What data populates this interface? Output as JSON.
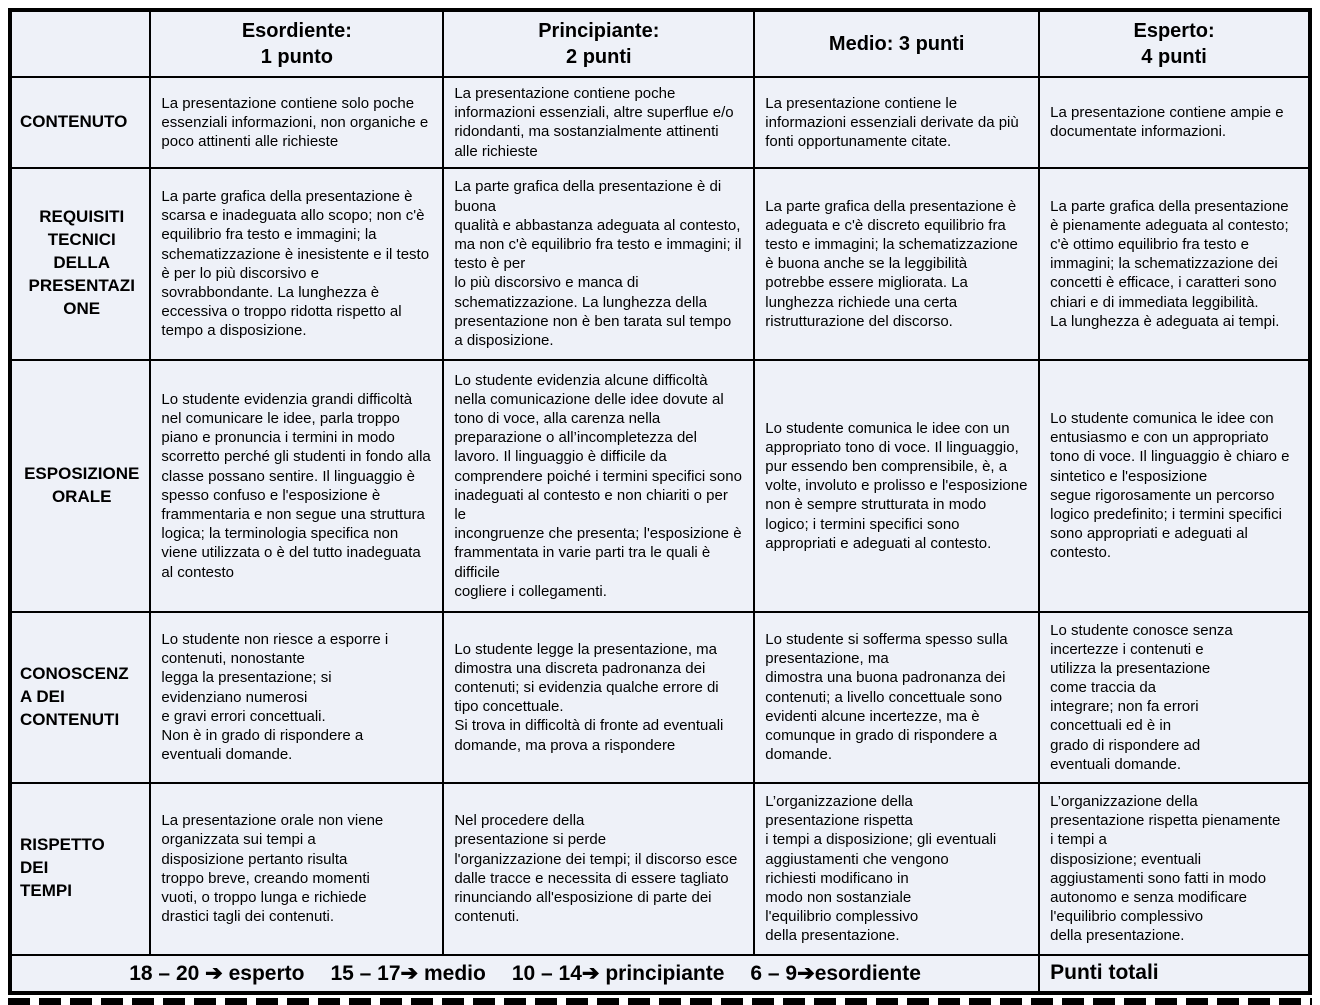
{
  "table": {
    "header": {
      "corner": "",
      "columns": [
        "Esordiente:\n1 punto",
        "Principiante:\n2 punti",
        "Medio: 3 punti",
        "Esperto:\n4 punti"
      ]
    },
    "rows": [
      {
        "label": "CONTENUTO",
        "cells": [
          "La presentazione contiene solo poche essenziali informazioni, non organiche e poco attinenti alle richieste",
          "La presentazione contiene poche informazioni essenziali, altre superflue e/o ridondanti, ma sostanzialmente attinenti alle richieste",
          "La presentazione contiene le informazioni essenziali derivate da più fonti opportunamente citate.",
          "La presentazione contiene ampie e documentate informazioni."
        ]
      },
      {
        "label": "REQUISITI\nTECNICI\nDELLA\nPRESENTAZI\nONE",
        "cells": [
          "La parte grafica della presentazione è scarsa e inadeguata allo scopo; non c'è equilibrio fra testo e immagini; la\nschematizzazione è inesistente e il testo è per lo più discorsivo e sovrabbondante. La lunghezza è eccessiva o troppo ridotta rispetto al tempo a disposizione.",
          "La parte grafica della presentazione è di buona\nqualità e abbastanza adeguata al contesto, ma non c'è equilibrio fra testo e immagini; il testo è per\nlo più discorsivo e manca di schematizzazione. La lunghezza della presentazione non è ben tarata sul tempo a disposizione.",
          "La parte grafica della presentazione è adeguata e c'è discreto equilibrio fra testo e immagini; la schematizzazione è buona anche se la leggibilità potrebbe essere migliorata. La lunghezza richiede una certa ristrutturazione del discorso.",
          "La parte grafica della presentazione è pienamente adeguata al contesto; c'è ottimo equilibrio fra testo e immagini; la schematizzazione dei concetti è efficace, i caratteri sono chiari e di immediata leggibilità.\nLa lunghezza è adeguata ai tempi."
        ]
      },
      {
        "label": "ESPOSIZIONE\nORALE",
        "cells": [
          "Lo studente evidenzia grandi difficoltà nel comunicare le idee, parla troppo piano e pronuncia i termini in modo scorretto perché gli studenti in fondo alla classe possano sentire. Il linguaggio è spesso confuso e l'esposizione è frammentaria e non segue una struttura logica; la terminologia specifica non viene utilizzata o è del tutto inadeguata al contesto",
          "Lo studente evidenzia alcune difficoltà nella comunicazione delle idee dovute al tono di voce, alla carenza nella preparazione o all’incompletezza del lavoro. Il linguaggio è difficile da comprendere poiché i termini specifici sono inadeguati al contesto e non chiariti o per le\nincongruenze che presenta; l'esposizione è frammentata in varie parti tra le quali è difficile\ncogliere i collegamenti.",
          "Lo studente comunica le idee con un appropriato tono di voce. Il linguaggio, pur essendo ben comprensibile, è, a volte, involuto e prolisso e l'esposizione non è sempre strutturata in modo logico; i termini specifici sono appropriati e adeguati al contesto.",
          "Lo studente comunica le idee con entusiasmo e con un appropriato tono di voce. Il linguaggio è chiaro e sintetico e l'esposizione\nsegue rigorosamente un percorso logico predefinito; i termini specifici sono appropriati e adeguati al contesto."
        ]
      },
      {
        "label": "CONOSCENZ\nA DEI\nCONTENUTI",
        "cells": [
          "Lo studente non riesce a esporre i contenuti, nonostante\nlegga la presentazione; si\nevidenziano numerosi\ne gravi errori concettuali.\nNon è in grado di rispondere a\neventuali domande.",
          "Lo studente legge la presentazione, ma dimostra una discreta padronanza dei contenuti; si evidenzia qualche errore di tipo concettuale.\nSi trova in difficoltà di fronte ad eventuali domande, ma prova a rispondere",
          "Lo studente si sofferma spesso sulla presentazione, ma\ndimostra una buona padronanza dei contenuti; a livello concettuale sono evidenti alcune incertezze, ma è comunque in grado di rispondere a domande.",
          "Lo studente conosce senza\nincertezze i contenuti e\nutilizza la presentazione\ncome traccia da\nintegrare; non fa errori\nconcettuali ed è in\ngrado di rispondere ad\neventuali domande."
        ]
      },
      {
        "label": "RISPETTO\nDEI\nTEMPI",
        "cells": [
          "La presentazione orale non viene\norganizzata sui tempi a\ndisposizione pertanto risulta\ntroppo breve, creando momenti\nvuoti, o troppo lunga e richiede\ndrastici tagli dei contenuti.",
          "Nel procedere della\npresentazione si perde\nl'organizzazione dei tempi; il discorso esce dalle tracce e necessita di essere tagliato\nrinunciando all'esposizione di parte dei contenuti.",
          "L’organizzazione della\npresentazione rispetta\ni tempi a disposizione; gli eventuali\naggiustamenti che vengono\nrichiesti  modificano in\nmodo non sostanziale\nl'equilibrio complessivo\ndella presentazione.",
          "L’organizzazione della\npresentazione rispetta pienamente\ni tempi a\ndisposizione; eventuali\naggiustamenti sono fatti in modo\nautonomo e senza modificare\nl'equilibrio complessivo\ndella presentazione."
        ]
      }
    ],
    "footer": {
      "arrow_icon": "➔",
      "scale": [
        {
          "range": "18 – 20 ",
          "label": " esperto"
        },
        {
          "range": "15 – 17",
          "label": " medio"
        },
        {
          "range": "10 – 14",
          "label": " principiante"
        },
        {
          "range": "6 – 9",
          "label": "esordiente"
        }
      ],
      "total_label": "Punti totali"
    }
  },
  "colors": {
    "cell_bg": "#eef1f8",
    "border": "#000000",
    "text": "#000000"
  }
}
